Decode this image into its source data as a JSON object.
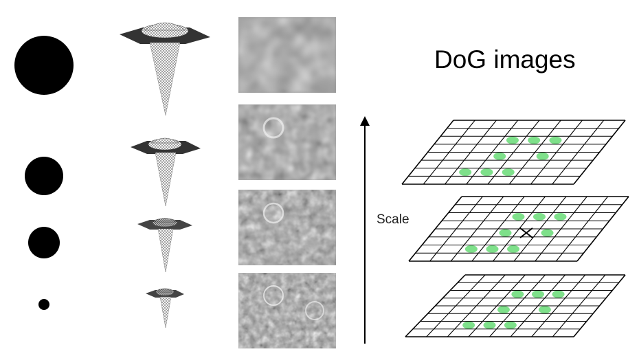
{
  "title": "DoG images",
  "axis_label": "Scale",
  "colors": {
    "blob": "#000000",
    "extrema_marker": "#7ee08a",
    "grid_line": "#000000",
    "arrow": "#000000"
  },
  "rows": 4,
  "grids": 3,
  "extrema_per_grid": 8
}
